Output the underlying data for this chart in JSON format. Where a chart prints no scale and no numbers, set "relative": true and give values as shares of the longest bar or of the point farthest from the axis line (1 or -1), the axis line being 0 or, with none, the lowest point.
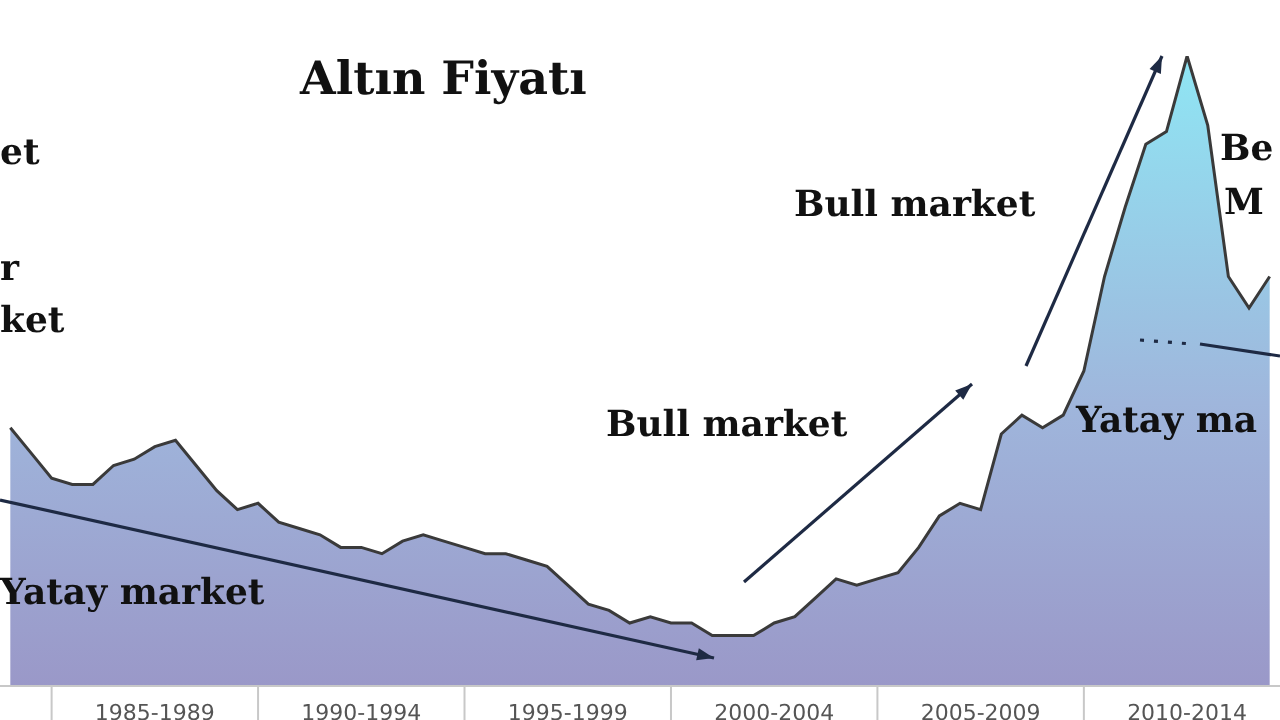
{
  "chart_data": {
    "type": "area",
    "title": "Altın Fiyatı",
    "relative": true,
    "categories": [
      null,
      null,
      null,
      null,
      null,
      null,
      null,
      "1985-1989",
      null,
      null,
      null,
      null,
      null,
      null,
      null,
      null,
      null,
      "1990-1994",
      null,
      null,
      null,
      null,
      null,
      null,
      null,
      null,
      null,
      "1995-1999",
      null,
      null,
      null,
      null,
      null,
      null,
      null,
      null,
      null,
      "2000-2004",
      null,
      null,
      null,
      null,
      null,
      null,
      null,
      null,
      null,
      "2005-2009",
      null,
      null,
      null,
      null,
      null,
      null,
      null,
      null,
      null,
      "2010-2014",
      null,
      null,
      null,
      null
    ],
    "series": [
      {
        "color": "#8fe6f4",
        "values": [
          0.41,
          0.37,
          0.33,
          0.32,
          0.32,
          0.35,
          0.36,
          0.38,
          0.39,
          0.35,
          0.31,
          0.28,
          0.29,
          0.26,
          0.25,
          0.24,
          0.22,
          0.22,
          0.21,
          0.23,
          0.24,
          0.23,
          0.22,
          0.21,
          0.21,
          0.2,
          0.19,
          0.16,
          0.13,
          0.12,
          0.1,
          0.11,
          0.1,
          0.1,
          0.08,
          0.08,
          0.08,
          0.1,
          0.11,
          0.14,
          0.17,
          0.16,
          0.17,
          0.18,
          0.22,
          0.27,
          0.29,
          0.28,
          0.4,
          0.43,
          0.41,
          0.43,
          0.5,
          0.65,
          0.76,
          0.86,
          0.88,
          1,
          0.89,
          0.65,
          0.6,
          0.65
        ]
      }
    ],
    "annotations": [
      "et",
      "r",
      "ket",
      "Bull market",
      "Bull market",
      "Be",
      "M",
      "Yatay market",
      "Yatay ma"
    ]
  }
}
